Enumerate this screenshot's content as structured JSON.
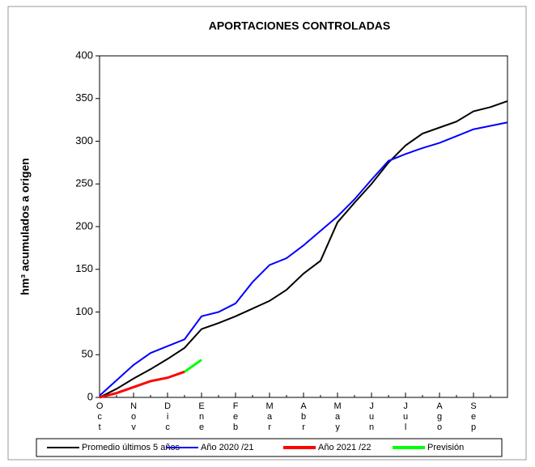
{
  "chart_data": {
    "type": "line",
    "title": "APORTACIONES CONTROLADAS",
    "y_label": "hm³ acumulados a origen",
    "categories": [
      "Oct",
      null,
      "Nov",
      null,
      "Dic",
      null,
      "Ene",
      null,
      "Feb",
      null,
      "Mar",
      null,
      "Abr",
      null,
      "May",
      null,
      "Jun",
      null,
      "Jul",
      null,
      "Ago",
      null,
      "Sep",
      null,
      null
    ],
    "ylim": [
      0,
      400
    ],
    "yticks": [
      0,
      50,
      100,
      150,
      200,
      250,
      300,
      350,
      400
    ],
    "legend": "bottom",
    "series": [
      {
        "name": "Promedio últimos 5 años",
        "color": "#000000",
        "values": [
          0,
          10,
          22,
          33,
          45,
          58,
          80,
          87,
          95,
          104,
          113,
          126,
          145,
          160,
          205,
          228,
          250,
          275,
          295,
          309,
          316,
          323,
          335,
          340,
          347
        ]
      },
      {
        "name": "Año 2020 /21",
        "color": "#0000ff",
        "values": [
          2,
          20,
          38,
          52,
          60,
          68,
          95,
          100,
          110,
          135,
          155,
          163,
          178,
          195,
          212,
          232,
          255,
          277,
          285,
          292,
          298,
          306,
          314,
          318,
          322
        ]
      },
      {
        "name": "Año 2021 /22",
        "color": "#ff0000",
        "values": [
          0,
          5,
          12,
          19,
          23,
          30,
          null,
          null,
          null,
          null,
          null,
          null,
          null,
          null,
          null,
          null,
          null,
          null,
          null,
          null,
          null,
          null,
          null,
          null,
          null
        ]
      },
      {
        "name": "Previsión",
        "color": "#00ff00",
        "values": [
          null,
          null,
          null,
          null,
          null,
          30,
          44,
          null,
          null,
          null,
          null,
          null,
          null,
          null,
          null,
          null,
          null,
          null,
          null,
          null,
          null,
          null,
          null,
          null,
          null
        ]
      }
    ]
  }
}
